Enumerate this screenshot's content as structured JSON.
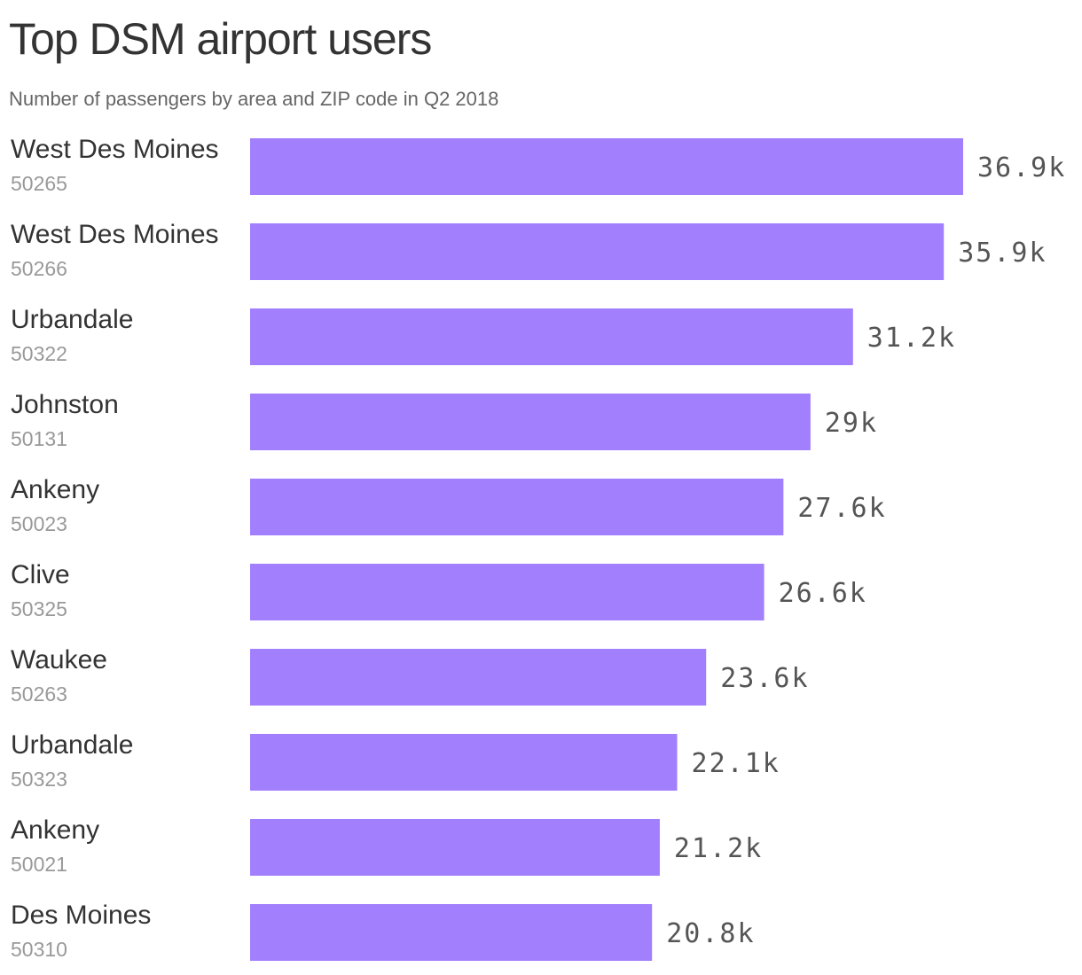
{
  "title": "Top DSM airport users",
  "subtitle": "Number of passengers by area and ZIP code in Q2 2018",
  "colors": {
    "bar": "#a17ffd",
    "title": "#333333",
    "subtitle": "#666666",
    "zip": "#999999",
    "value": "#555555"
  },
  "chart_data": {
    "type": "bar",
    "orientation": "horizontal",
    "title": "Top DSM airport users",
    "subtitle": "Number of passengers by area and ZIP code in Q2 2018",
    "xlabel": "",
    "ylabel": "",
    "grid": false,
    "categories": [
      {
        "name": "West Des Moines",
        "zip": "50265"
      },
      {
        "name": "West Des Moines",
        "zip": "50266"
      },
      {
        "name": "Urbandale",
        "zip": "50322"
      },
      {
        "name": "Johnston",
        "zip": "50131"
      },
      {
        "name": "Ankeny",
        "zip": "50023"
      },
      {
        "name": "Clive",
        "zip": "50325"
      },
      {
        "name": "Waukee",
        "zip": "50263"
      },
      {
        "name": "Urbandale",
        "zip": "50323"
      },
      {
        "name": "Ankeny",
        "zip": "50021"
      },
      {
        "name": "Des Moines",
        "zip": "50310"
      }
    ],
    "values": [
      36900,
      35900,
      31200,
      29000,
      27600,
      26600,
      23600,
      22100,
      21200,
      20800
    ],
    "value_labels": [
      "36.9k",
      "35.9k",
      "31.2k",
      "29k",
      "27.6k",
      "26.6k",
      "23.6k",
      "22.1k",
      "21.2k",
      "20.8k"
    ]
  }
}
